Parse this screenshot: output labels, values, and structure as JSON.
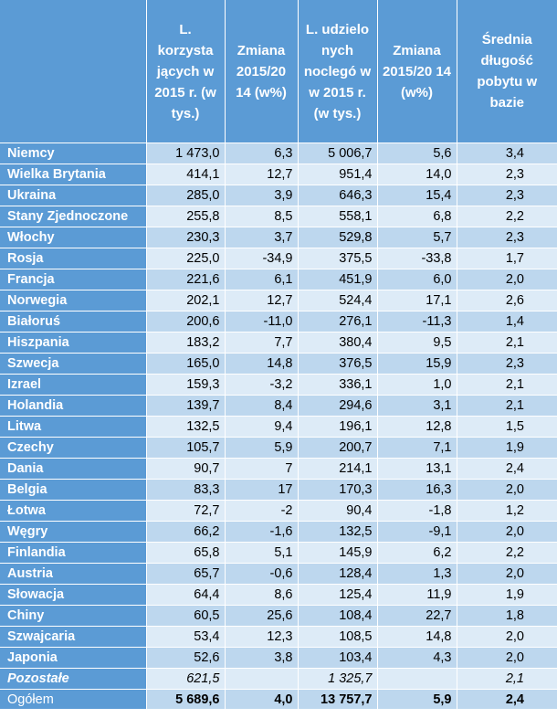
{
  "header": {
    "col0": "",
    "col1": "L. korzysta jących w 2015 r. (w tys.)",
    "col2": "Zmiana 2015/20 14 (w%)",
    "col3": "L. udzielo nych noclegó w w 2015 r. (w tys.)",
    "col4": "Zmiana 2015/20 14 (w%)",
    "col5": "Średnia długość pobytu w bazie"
  },
  "rows": [
    [
      "Niemcy",
      "1 473,0",
      "6,3",
      "5 006,7",
      "5,6",
      "3,4"
    ],
    [
      "Wielka Brytania",
      "414,1",
      "12,7",
      "951,4",
      "14,0",
      "2,3"
    ],
    [
      "Ukraina",
      "285,0",
      "3,9",
      "646,3",
      "15,4",
      "2,3"
    ],
    [
      "Stany Zjednoczone",
      "255,8",
      "8,5",
      "558,1",
      "6,8",
      "2,2"
    ],
    [
      "Włochy",
      "230,3",
      "3,7",
      "529,8",
      "5,7",
      "2,3"
    ],
    [
      "Rosja",
      "225,0",
      "-34,9",
      "375,5",
      "-33,8",
      "1,7"
    ],
    [
      "Francja",
      "221,6",
      "6,1",
      "451,9",
      "6,0",
      "2,0"
    ],
    [
      "Norwegia",
      "202,1",
      "12,7",
      "524,4",
      "17,1",
      "2,6"
    ],
    [
      "Białoruś",
      "200,6",
      "-11,0",
      "276,1",
      "-11,3",
      "1,4"
    ],
    [
      "Hiszpania",
      "183,2",
      "7,7",
      "380,4",
      "9,5",
      "2,1"
    ],
    [
      "Szwecja",
      "165,0",
      "14,8",
      "376,5",
      "15,9",
      "2,3"
    ],
    [
      "Izrael",
      "159,3",
      "-3,2",
      "336,1",
      "1,0",
      "2,1"
    ],
    [
      "Holandia",
      "139,7",
      "8,4",
      "294,6",
      "3,1",
      "2,1"
    ],
    [
      "Litwa",
      "132,5",
      "9,4",
      "196,1",
      "12,8",
      "1,5"
    ],
    [
      "Czechy",
      "105,7",
      "5,9",
      "200,7",
      "7,1",
      "1,9"
    ],
    [
      "Dania",
      "90,7",
      "7",
      "214,1",
      "13,1",
      "2,4"
    ],
    [
      "Belgia",
      "83,3",
      "17",
      "170,3",
      "16,3",
      "2,0"
    ],
    [
      "Łotwa",
      "72,7",
      "-2",
      "90,4",
      "-1,8",
      "1,2"
    ],
    [
      "Węgry",
      "66,2",
      "-1,6",
      "132,5",
      "-9,1",
      "2,0"
    ],
    [
      "Finlandia",
      "65,8",
      "5,1",
      "145,9",
      "6,2",
      "2,2"
    ],
    [
      "Austria",
      "65,7",
      "-0,6",
      "128,4",
      "1,3",
      "2,0"
    ],
    [
      "Słowacja",
      "64,4",
      "8,6",
      "125,4",
      "11,9",
      "1,9"
    ],
    [
      "Chiny",
      "60,5",
      "25,6",
      "108,4",
      "22,7",
      "1,8"
    ],
    [
      "Szwajcaria",
      "53,4",
      "12,3",
      "108,5",
      "14,8",
      "2,0"
    ],
    [
      "Japonia",
      "52,6",
      "3,8",
      "103,4",
      "4,3",
      "2,0"
    ],
    [
      "Pozostałe",
      "621,5",
      "",
      "1 325,7",
      "",
      "2,1"
    ]
  ],
  "total": [
    "Ogółem",
    "5 689,6",
    "4,0",
    "13 757,7",
    "5,9",
    "2,4"
  ]
}
